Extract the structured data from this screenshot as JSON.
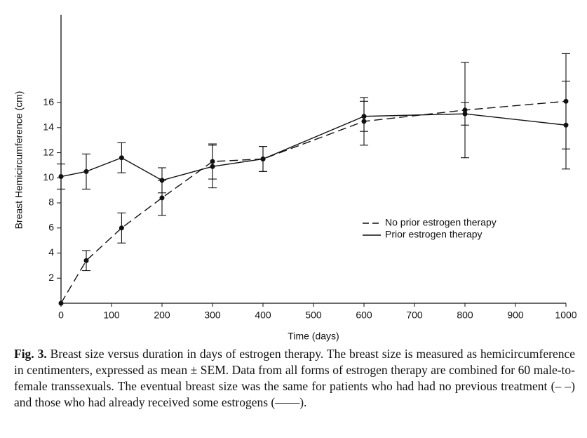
{
  "chart_data": {
    "type": "line",
    "ylabel": "Breast Hemicircumference (cm)",
    "xlabel": "Time (days)",
    "x": [
      0,
      50,
      120,
      200,
      300,
      400,
      600,
      800,
      1000
    ],
    "series": [
      {
        "name": "No prior estrogen therapy",
        "color": "#111111",
        "dash": true,
        "values": [
          0,
          3.4,
          6.0,
          8.4,
          11.3,
          11.5,
          14.5,
          15.4,
          16.1
        ],
        "errors": [
          null,
          0.8,
          1.2,
          1.4,
          1.4,
          1.0,
          1.9,
          3.8,
          3.8
        ]
      },
      {
        "name": "Prior estrogen therapy",
        "color": "#111111",
        "dash": false,
        "values": [
          10.1,
          10.5,
          11.6,
          9.8,
          10.9,
          11.5,
          14.9,
          15.1,
          14.2
        ],
        "errors": [
          1.0,
          1.4,
          1.2,
          1.0,
          1.7,
          1.0,
          1.2,
          0.9,
          3.5
        ]
      }
    ],
    "xlim": [
      0,
      1000
    ],
    "xticks": [
      0,
      100,
      200,
      300,
      400,
      500,
      600,
      700,
      800,
      900,
      1000
    ],
    "ylim": [
      0,
      23
    ],
    "yticks": [
      2,
      4,
      6,
      8,
      10,
      12,
      14,
      16
    ],
    "grid": false,
    "legend": "right"
  },
  "caption": {
    "label": "Fig. 3.",
    "text": "Breast size versus duration in days of estrogen therapy. The breast size is measured as hemicircumference in centimenters, expressed as mean ± SEM. Data from all forms of estrogen therapy are combined for 60 male-to-female transsexuals. The eventual breast size was the same for patients who had had no previous treatment (– –) and those who had already received some estrogens (——)."
  }
}
